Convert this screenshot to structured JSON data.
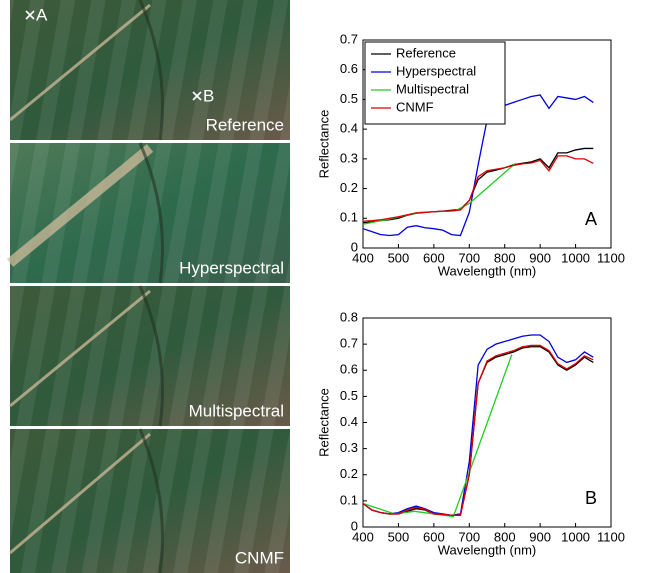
{
  "images": [
    {
      "label": "Reference",
      "markers": [
        "A",
        "B"
      ]
    },
    {
      "label": "Hyperspectral"
    },
    {
      "label": "Multispectral"
    },
    {
      "label": "CNMF"
    }
  ],
  "chart_data": [
    {
      "type": "line",
      "annotation": "A",
      "x_label": "Wavelength (nm)",
      "y_label": "Reflectance",
      "xlim": [
        400,
        1100
      ],
      "xticks": [
        400,
        500,
        600,
        700,
        800,
        900,
        1000,
        1100
      ],
      "ylim": [
        0,
        0.7
      ],
      "yticks": [
        0,
        0.1,
        0.2,
        0.3,
        0.4,
        0.5,
        0.6,
        0.7
      ],
      "legend": "upper left",
      "x": [
        400,
        425,
        450,
        475,
        500,
        525,
        550,
        575,
        600,
        625,
        650,
        675,
        700,
        725,
        750,
        775,
        800,
        825,
        850,
        875,
        900,
        925,
        950,
        975,
        1000,
        1025,
        1050
      ],
      "series": [
        {
          "name": "Reference",
          "color": "#000000",
          "values": [
            0.085,
            0.088,
            0.092,
            0.095,
            0.1,
            0.11,
            0.117,
            0.12,
            0.122,
            0.124,
            0.127,
            0.13,
            0.16,
            0.23,
            0.255,
            0.262,
            0.27,
            0.28,
            0.285,
            0.29,
            0.3,
            0.27,
            0.32,
            0.32,
            0.33,
            0.335,
            0.335
          ]
        },
        {
          "name": "Hyperspectral",
          "color": "#0000dd",
          "values": [
            0.065,
            0.055,
            0.045,
            0.042,
            0.045,
            0.07,
            0.075,
            0.068,
            0.065,
            0.06,
            0.045,
            0.042,
            0.12,
            0.28,
            0.43,
            0.46,
            0.48,
            0.49,
            0.5,
            0.51,
            0.515,
            0.47,
            0.51,
            0.505,
            0.5,
            0.51,
            0.49
          ]
        },
        {
          "name": "Multispectral",
          "color": "#22cc22",
          "x": [
            400,
            485,
            560,
            660,
            700,
            830
          ],
          "values": [
            0.08,
            0.1,
            0.12,
            0.125,
            0.15,
            0.285
          ]
        },
        {
          "name": "CNMF",
          "color": "#dd0000",
          "values": [
            0.09,
            0.092,
            0.095,
            0.1,
            0.105,
            0.112,
            0.118,
            0.12,
            0.122,
            0.124,
            0.125,
            0.128,
            0.16,
            0.24,
            0.26,
            0.265,
            0.27,
            0.278,
            0.283,
            0.286,
            0.295,
            0.26,
            0.31,
            0.31,
            0.3,
            0.3,
            0.285
          ]
        }
      ]
    },
    {
      "type": "line",
      "annotation": "B",
      "x_label": "Wavelength (nm)",
      "y_label": "Reflectance",
      "xlim": [
        400,
        1100
      ],
      "xticks": [
        400,
        500,
        600,
        700,
        800,
        900,
        1000,
        1100
      ],
      "ylim": [
        0,
        0.8
      ],
      "yticks": [
        0,
        0.1,
        0.2,
        0.3,
        0.4,
        0.5,
        0.6,
        0.7,
        0.8
      ],
      "x": [
        400,
        425,
        450,
        475,
        500,
        525,
        550,
        575,
        600,
        625,
        650,
        675,
        700,
        725,
        750,
        775,
        800,
        825,
        850,
        875,
        900,
        925,
        950,
        975,
        1000,
        1025,
        1050
      ],
      "series": [
        {
          "name": "Reference",
          "color": "#000000",
          "values": [
            0.09,
            0.065,
            0.055,
            0.05,
            0.05,
            0.06,
            0.07,
            0.065,
            0.05,
            0.048,
            0.045,
            0.045,
            0.2,
            0.55,
            0.63,
            0.65,
            0.66,
            0.67,
            0.685,
            0.69,
            0.69,
            0.67,
            0.62,
            0.6,
            0.62,
            0.65,
            0.63
          ]
        },
        {
          "name": "Hyperspectral",
          "color": "#0000dd",
          "values": [
            0.09,
            0.065,
            0.055,
            0.05,
            0.055,
            0.07,
            0.08,
            0.07,
            0.055,
            0.05,
            0.045,
            0.05,
            0.25,
            0.62,
            0.68,
            0.7,
            0.71,
            0.72,
            0.73,
            0.735,
            0.735,
            0.71,
            0.65,
            0.63,
            0.64,
            0.67,
            0.65
          ]
        },
        {
          "name": "Multispectral",
          "color": "#22cc22",
          "x": [
            400,
            490,
            545,
            655,
            820
          ],
          "values": [
            0.09,
            0.05,
            0.06,
            0.04,
            0.66
          ]
        },
        {
          "name": "CNMF",
          "color": "#dd0000",
          "values": [
            0.09,
            0.065,
            0.055,
            0.05,
            0.05,
            0.065,
            0.075,
            0.068,
            0.05,
            0.048,
            0.045,
            0.045,
            0.2,
            0.55,
            0.635,
            0.655,
            0.665,
            0.675,
            0.69,
            0.695,
            0.695,
            0.675,
            0.625,
            0.605,
            0.625,
            0.655,
            0.64
          ]
        }
      ]
    }
  ]
}
